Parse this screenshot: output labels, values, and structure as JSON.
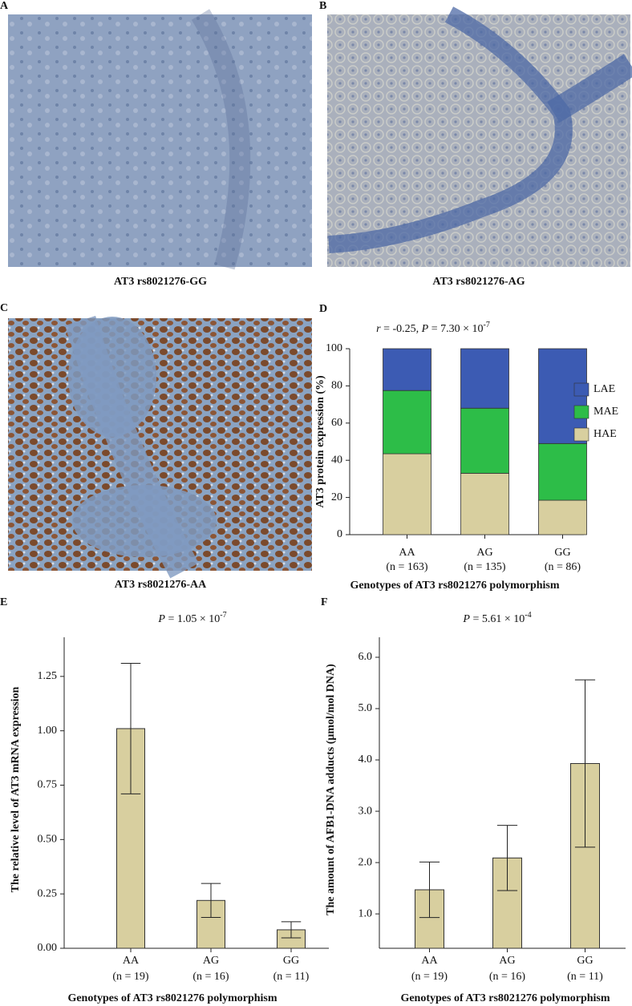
{
  "images": [
    {
      "label": "A",
      "caption": "AT3 rs8021276-GG"
    },
    {
      "label": "B",
      "caption": "AT3 rs8021276-AG"
    },
    {
      "label": "C",
      "caption": "AT3 rs8021276-AA"
    }
  ],
  "chart_data": [
    {
      "type": "stacked_bar",
      "panel_label": "D",
      "title": [
        {
          "text": "r",
          "italic": true
        },
        {
          "text": " = -0.25, "
        },
        {
          "text": "P",
          "italic": true
        },
        {
          "text": " = 7.30 × 10"
        },
        {
          "text": "-7",
          "sup": true
        }
      ],
      "categories": [
        "AA",
        "AG",
        "GG"
      ],
      "category_notes": [
        "(n = 163)",
        "(n = 135)",
        "(n = 86)"
      ],
      "ylabel": "AT3 protein expression (%)",
      "xlabel": "Genotypes of AT3 rs8021276 polymorphism",
      "series": [
        {
          "name": "HAE",
          "color": "#d8cf9f",
          "values": [
            43.5,
            33,
            18.5
          ]
        },
        {
          "name": "MAE",
          "color": "#2dbd48",
          "values": [
            34,
            35,
            30.5
          ]
        },
        {
          "name": "LAE",
          "color": "#3c5bb3",
          "values": [
            22.5,
            32,
            51
          ]
        }
      ],
      "ylim": [
        0,
        100
      ],
      "yticks": [
        0,
        20,
        40,
        60,
        80,
        100
      ]
    },
    {
      "type": "bar",
      "panel_label": "E",
      "title": [
        {
          "text": "P",
          "italic": true
        },
        {
          "text": " = 1.05 × 10"
        },
        {
          "text": "-7",
          "sup": true
        }
      ],
      "categories": [
        "AA",
        "AG",
        "GG"
      ],
      "category_notes": [
        "(n = 19)",
        "(n = 16)",
        "(n = 11)"
      ],
      "ylabel": "The relative level of AT3 mRNA expression",
      "xlabel": "Genotypes of AT3 rs8021276 polymorphism",
      "values": [
        1.01,
        0.22,
        0.085
      ],
      "errors": [
        0.3,
        0.078,
        0.037
      ],
      "color": "#d8cf9f",
      "ylim": [
        0,
        1.43
      ],
      "yticks": [
        {
          "value": 0,
          "label": "0.00"
        },
        0.25,
        {
          "value": 0.5,
          "label": "0.50"
        },
        0.75,
        {
          "value": 1,
          "label": "1.00"
        },
        1.25
      ]
    },
    {
      "type": "bar",
      "panel_label": "F",
      "title": [
        {
          "text": "P",
          "italic": true
        },
        {
          "text": " = 5.61 × 10"
        },
        {
          "text": "-4",
          "sup": true
        }
      ],
      "categories": [
        "AA",
        "AG",
        "GG"
      ],
      "category_notes": [
        "(n = 19)",
        "(n = 16)",
        "(n = 11)"
      ],
      "ylabel": "The amount of AFB1-DNA adducts (μmol/mol DNA)",
      "xlabel": "Genotypes of AT3 rs8021276 polymorphism",
      "values": [
        1.47,
        2.09,
        3.93
      ],
      "errors": [
        0.54,
        0.635,
        1.63
      ],
      "color": "#d8cf9f",
      "ylim": [
        0.33,
        6.39
      ],
      "yticks": [
        {
          "value": 1,
          "label": "1.0"
        },
        {
          "value": 2,
          "label": "2.0"
        },
        {
          "value": 3,
          "label": "3.0"
        },
        {
          "value": 4,
          "label": "4.0"
        },
        {
          "value": 5,
          "label": "5.0"
        },
        {
          "value": 6,
          "label": "6.0"
        }
      ]
    }
  ]
}
